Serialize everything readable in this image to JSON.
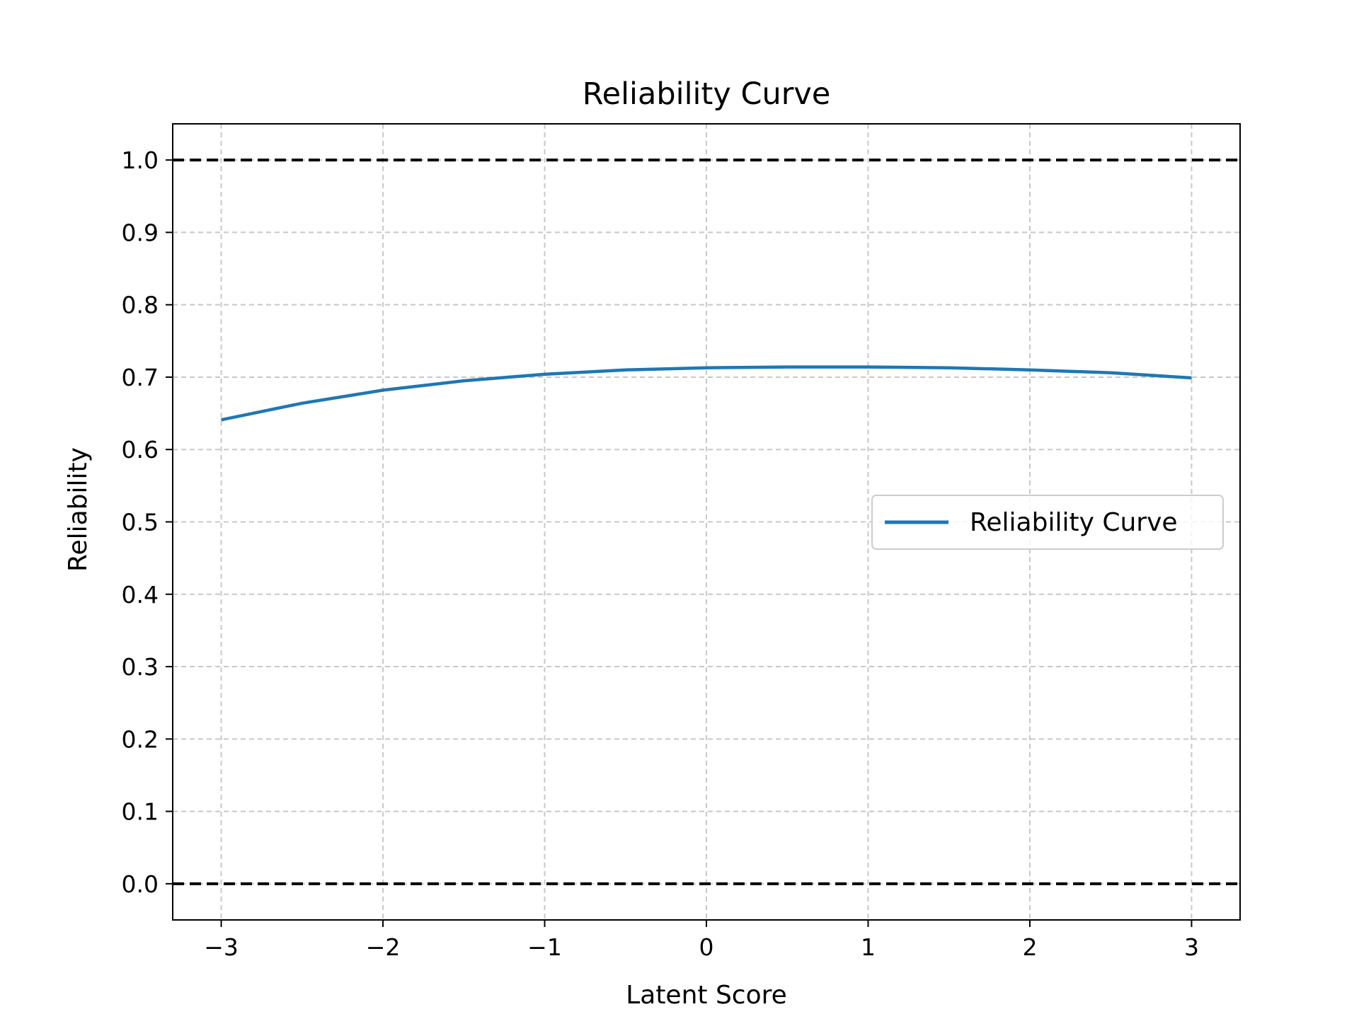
{
  "chart_data": {
    "type": "line",
    "title": "Reliability Curve",
    "xlabel": "Latent Score",
    "ylabel": "Reliability",
    "xlim": [
      -3.3,
      3.3
    ],
    "ylim": [
      -0.05,
      1.05
    ],
    "xticks": [
      -3,
      -2,
      -1,
      0,
      1,
      2,
      3
    ],
    "xtick_labels": [
      "−3",
      "−2",
      "−1",
      "0",
      "1",
      "2",
      "3"
    ],
    "yticks": [
      0.0,
      0.1,
      0.2,
      0.3,
      0.4,
      0.5,
      0.6,
      0.7,
      0.8,
      0.9,
      1.0
    ],
    "ytick_labels": [
      "0.0",
      "0.1",
      "0.2",
      "0.3",
      "0.4",
      "0.5",
      "0.6",
      "0.7",
      "0.8",
      "0.9",
      "1.0"
    ],
    "grid": true,
    "reference_lines": [
      {
        "y": 1.0,
        "style": "dashed",
        "color": "#000000"
      },
      {
        "y": 0.0,
        "style": "dashed",
        "color": "#000000"
      }
    ],
    "series": [
      {
        "name": "Reliability Curve",
        "color": "#1f77b4",
        "x": [
          -3.0,
          -2.5,
          -2.0,
          -1.5,
          -1.0,
          -0.5,
          0.0,
          0.5,
          1.0,
          1.5,
          2.0,
          2.5,
          3.0
        ],
        "y": [
          0.641,
          0.664,
          0.682,
          0.695,
          0.704,
          0.71,
          0.713,
          0.714,
          0.714,
          0.713,
          0.71,
          0.706,
          0.699
        ]
      }
    ],
    "legend": {
      "position": "center-right",
      "entries": [
        "Reliability Curve"
      ]
    }
  }
}
